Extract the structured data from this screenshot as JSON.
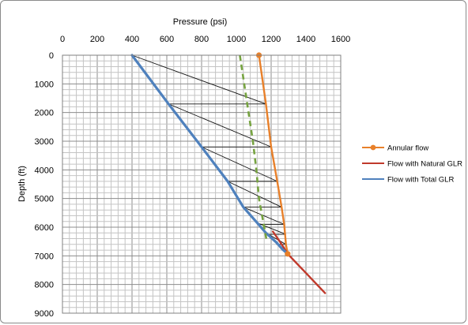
{
  "chart_data": {
    "type": "line",
    "xlabel": "Pressure (psi)",
    "ylabel": "Depth (ft)",
    "xlim": [
      0,
      1600
    ],
    "ylim": [
      0,
      9000
    ],
    "x_axis_position": "top",
    "y_axis_reversed": true,
    "x_ticks": [
      0,
      200,
      400,
      600,
      800,
      1000,
      1200,
      1400,
      1600
    ],
    "y_ticks": [
      0,
      1000,
      2000,
      3000,
      4000,
      5000,
      6000,
      7000,
      8000,
      9000
    ],
    "grid": true,
    "legend_position": "right",
    "series": [
      {
        "name": "Annular flow",
        "color": "#e8802a",
        "marker": "circle",
        "points": [
          [
            1130,
            0
          ],
          [
            1170,
            1700
          ],
          [
            1200,
            3200
          ],
          [
            1235,
            4400
          ],
          [
            1260,
            5300
          ],
          [
            1275,
            5900
          ],
          [
            1285,
            6600
          ],
          [
            1295,
            6930
          ]
        ]
      },
      {
        "name": "Flow with Natural GLR",
        "color": "#c0392b",
        "marker": "none",
        "points": [
          [
            1210,
            6150
          ],
          [
            1250,
            6500
          ],
          [
            1295,
            6930
          ],
          [
            1400,
            7600
          ],
          [
            1510,
            8300
          ]
        ]
      },
      {
        "name": "Flow with Total GLR",
        "color": "#4f81bd",
        "marker": "none",
        "points": [
          [
            400,
            0
          ],
          [
            610,
            1700
          ],
          [
            800,
            3200
          ],
          [
            950,
            4400
          ],
          [
            1040,
            5300
          ],
          [
            1120,
            5850
          ],
          [
            1170,
            6200
          ],
          [
            1230,
            6530
          ],
          [
            1265,
            6770
          ],
          [
            1295,
            6930
          ]
        ]
      },
      {
        "name": "",
        "color": "#76a340",
        "line_style": "dashed",
        "marker": "none",
        "points": [
          [
            1020,
            0
          ],
          [
            1045,
            1000
          ],
          [
            1070,
            2000
          ],
          [
            1095,
            3000
          ],
          [
            1115,
            4000
          ],
          [
            1130,
            5000
          ],
          [
            1145,
            5500
          ],
          [
            1160,
            6000
          ],
          [
            1175,
            6500
          ]
        ]
      }
    ],
    "construction_lines": [
      [
        [
          400,
          0
        ],
        [
          1170,
          1700
        ]
      ],
      [
        [
          610,
          1700
        ],
        [
          1170,
          1700
        ]
      ],
      [
        [
          610,
          1700
        ],
        [
          1200,
          3200
        ]
      ],
      [
        [
          800,
          3200
        ],
        [
          1200,
          3200
        ]
      ],
      [
        [
          800,
          3200
        ],
        [
          1235,
          4400
        ]
      ],
      [
        [
          950,
          4400
        ],
        [
          1235,
          4400
        ]
      ],
      [
        [
          950,
          4400
        ],
        [
          1260,
          5300
        ]
      ],
      [
        [
          1040,
          5300
        ],
        [
          1260,
          5300
        ]
      ],
      [
        [
          1040,
          5300
        ],
        [
          1275,
          5900
        ]
      ],
      [
        [
          1120,
          5900
        ],
        [
          1275,
          5900
        ]
      ],
      [
        [
          1120,
          5850
        ],
        [
          1285,
          6250
        ]
      ],
      [
        [
          1170,
          6250
        ],
        [
          1285,
          6250
        ]
      ],
      [
        [
          1170,
          6200
        ],
        [
          1285,
          6600
        ]
      ],
      [
        [
          1230,
          6600
        ],
        [
          1285,
          6600
        ]
      ],
      [
        [
          1230,
          6530
        ],
        [
          1295,
          6930
        ]
      ]
    ]
  }
}
